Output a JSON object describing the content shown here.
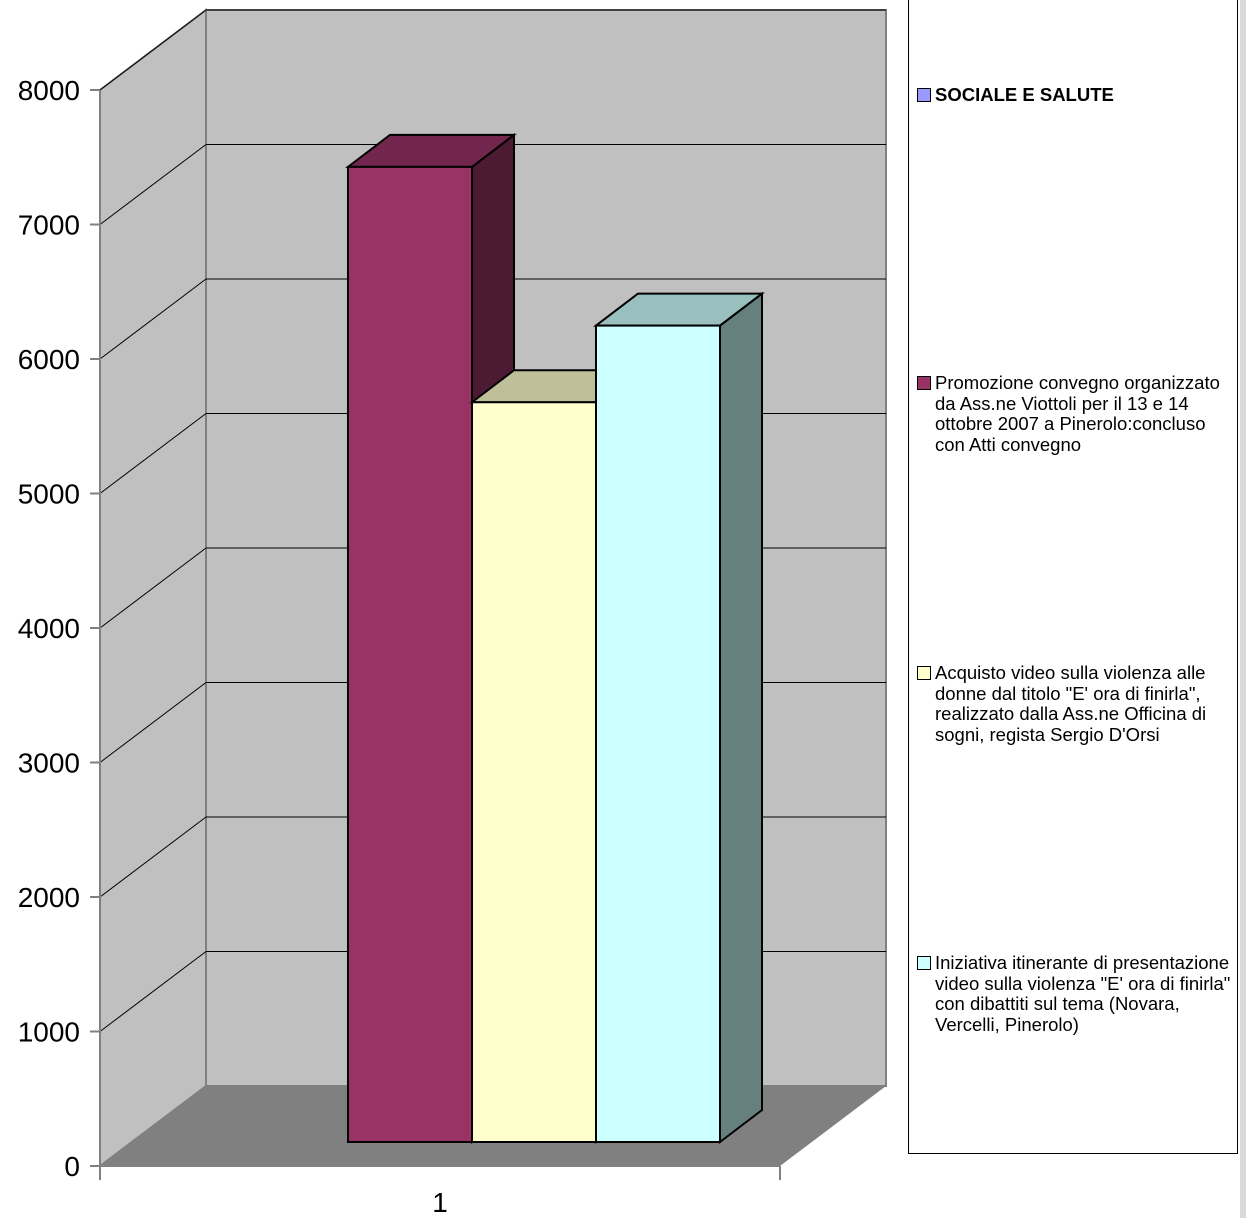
{
  "chart_data": {
    "type": "bar",
    "style": "3d-clustered-column",
    "categories": [
      "1"
    ],
    "series": [
      {
        "name": "SOCIALE E SALUTE",
        "values": [
          0
        ],
        "color": "#9999ff"
      },
      {
        "name": "Promozione convegno organizzato da Ass.ne Viottoli per il 13 e 14 ottobre 2007 a Pinerolo:concluso con Atti convegno",
        "values": [
          7250
        ],
        "color": "#993366"
      },
      {
        "name": "Acquisto video sulla violenza alle donne dal titolo \"E' ora di finirla\", realizzato dalla Ass.ne Officina di sogni, regista Sergio D'Orsi",
        "values": [
          5500
        ],
        "color": "#ffffcc"
      },
      {
        "name": "Iniziativa itinerante di presentazione video sulla violenza \"E' ora di finirla\" con dibattiti sul tema (Novara, Vercelli, Pinerolo)",
        "values": [
          6070
        ],
        "color": "#ccffff"
      }
    ],
    "y_ticks": [
      "0",
      "1000",
      "2000",
      "3000",
      "4000",
      "5000",
      "6000",
      "7000",
      "8000"
    ],
    "ylim": [
      0,
      8000
    ],
    "grid": true,
    "legend_position": "right",
    "colors": {
      "wall": "#c0c0c0",
      "floor": "#808080"
    }
  }
}
